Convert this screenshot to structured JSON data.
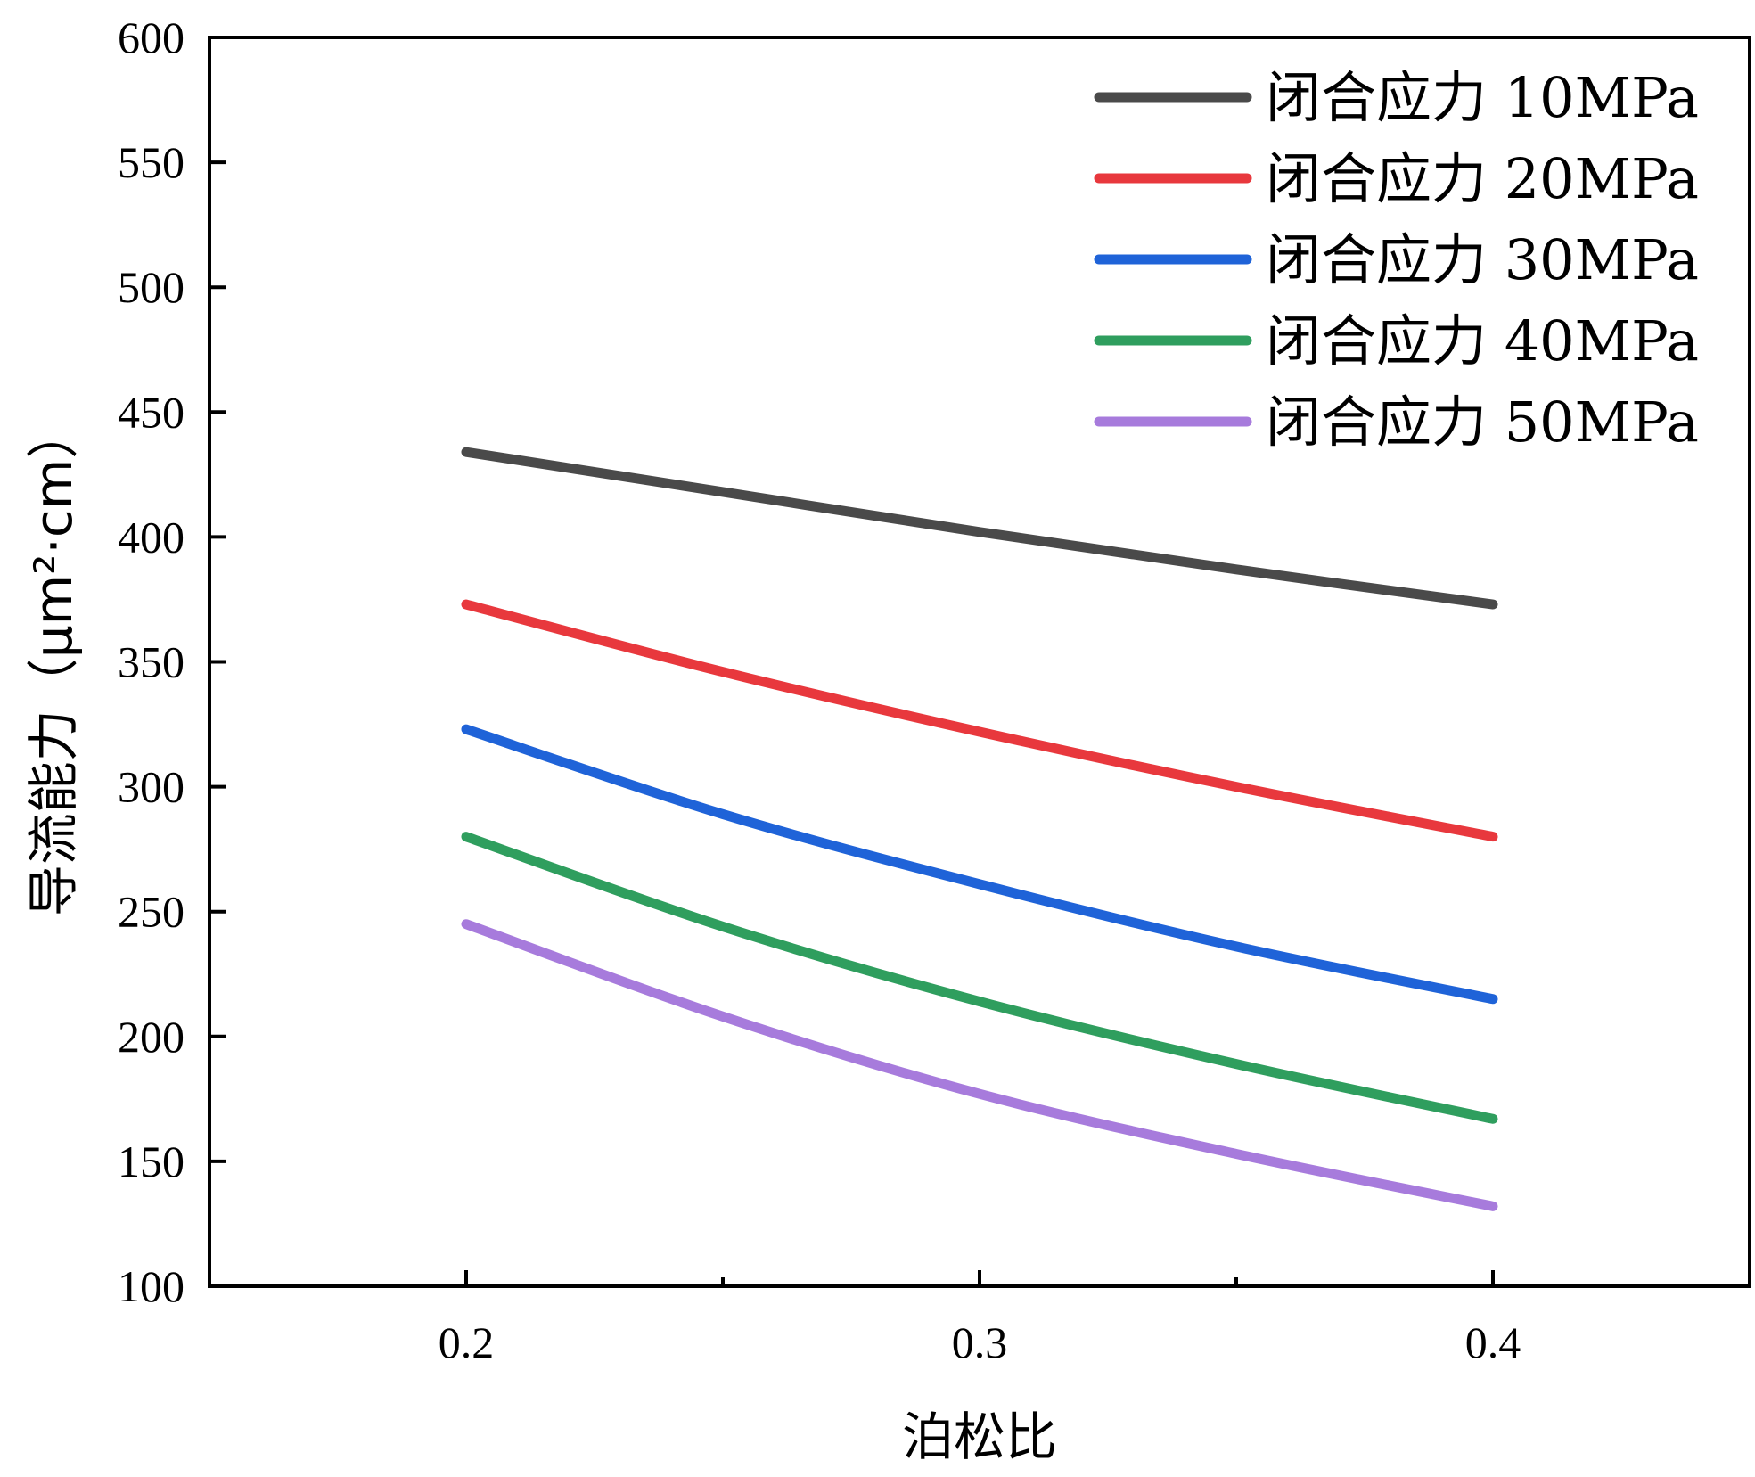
{
  "chart_data": {
    "type": "line",
    "title": "",
    "xlabel": "泊松比",
    "ylabel": "导流能力（μm²·cm）",
    "xlim": [
      0.15,
      0.45
    ],
    "ylim": [
      100,
      600
    ],
    "xticks": [
      0.2,
      0.3,
      0.4
    ],
    "xtick_labels": [
      "0.2",
      "0.3",
      "0.4"
    ],
    "xminor_ticks": [
      0.25,
      0.35
    ],
    "yticks": [
      100,
      150,
      200,
      250,
      300,
      350,
      400,
      450,
      500,
      550,
      600
    ],
    "ytick_labels": [
      "100",
      "150",
      "200",
      "250",
      "300",
      "350",
      "400",
      "450",
      "500",
      "550",
      "600"
    ],
    "grid": false,
    "legend_position": "top-right",
    "x": [
      0.2,
      0.25,
      0.3,
      0.35,
      0.4
    ],
    "series": [
      {
        "name": "闭合应力 10MPa",
        "color": "#4a4a4a",
        "values": [
          434,
          418,
          402,
          387,
          373
        ]
      },
      {
        "name": "闭合应力 20MPa",
        "color": "#e8383d",
        "values": [
          373,
          346,
          322,
          300,
          280
        ]
      },
      {
        "name": "闭合应力 30MPa",
        "color": "#1f63d8",
        "values": [
          323,
          289,
          261,
          236,
          215
        ]
      },
      {
        "name": "闭合应力 40MPa",
        "color": "#2f9e5e",
        "values": [
          280,
          244,
          214,
          189,
          167
        ]
      },
      {
        "name": "闭合应力 50MPa",
        "color": "#a77bdc",
        "values": [
          245,
          208,
          177,
          153,
          132
        ]
      }
    ]
  }
}
